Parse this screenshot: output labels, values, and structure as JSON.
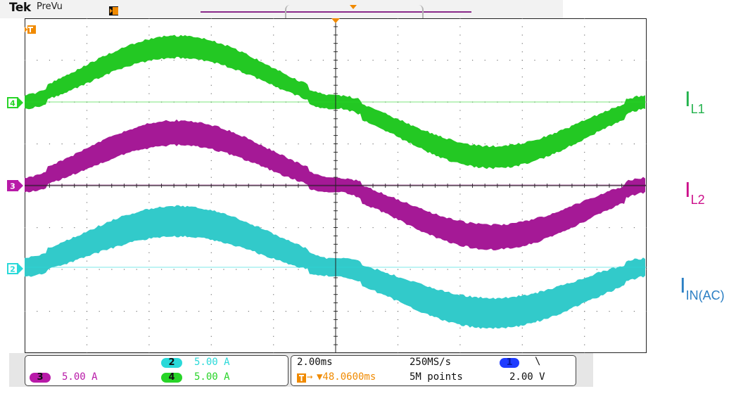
{
  "header": {
    "brand": "Tek",
    "mode": "PreVu"
  },
  "colors": {
    "ch2": "#2ad9d9",
    "ch3": "#b81aa8",
    "ch4": "#28d428",
    "ch1": "#1f3cff",
    "trigger": "#f08a00",
    "label_ch4": "#22b24c",
    "label_ch3": "#cc0e8a",
    "label_ch2": "#2b7fc4"
  },
  "channels": {
    "ch4_marker": "4",
    "ch3_marker": "3",
    "ch2_marker": "2"
  },
  "labels": {
    "il1_main": "I",
    "il1_sub": "L1",
    "il2_main": "I",
    "il2_sub": "L2",
    "iin_main": "I",
    "iin_sub": "IN(AC)"
  },
  "readout": {
    "ch3_id": "3",
    "ch3_scale": "5.00 A",
    "ch2_id": "2",
    "ch2_scale": "5.00 A",
    "ch4_id": "4",
    "ch4_scale": "5.00 A",
    "timebase": "2.00ms",
    "sample_rate": "250MS/s",
    "trigger_offset": "▼48.0600ms",
    "record_length": "5M points",
    "trigger_source_id": "1",
    "trigger_slope": "\\",
    "trigger_level": "2.00 V"
  },
  "icons": {
    "trigger": "trigger-flag-icon",
    "trigger_position": "trigger-position-arrow-icon"
  }
}
